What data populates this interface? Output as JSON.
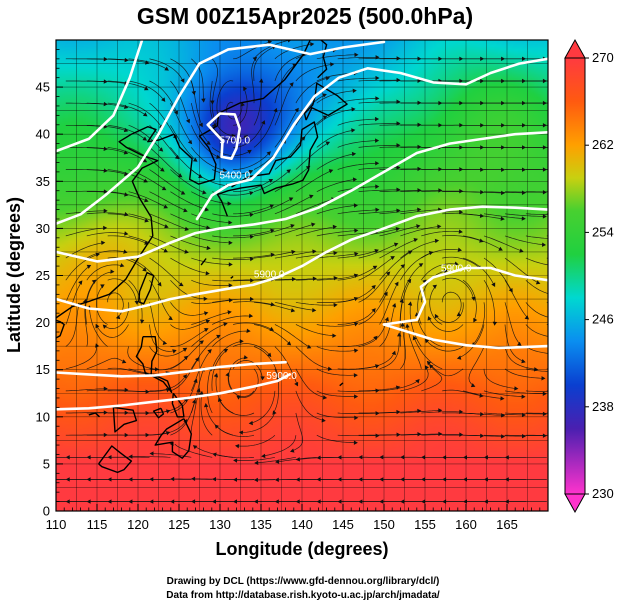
{
  "title": "GSM 00Z15Apr2025 (500.0hPa)",
  "x_axis": {
    "label": "Longitude (degrees)",
    "range": [
      110,
      170
    ],
    "ticks": [
      "110",
      "115",
      "120",
      "125",
      "130",
      "135",
      "140",
      "145",
      "150",
      "155",
      "160",
      "165"
    ]
  },
  "y_axis": {
    "label": "Latitude  (degrees)",
    "range": [
      0,
      50
    ],
    "ticks": [
      "0",
      "5",
      "10",
      "15",
      "20",
      "25",
      "30",
      "35",
      "40",
      "45"
    ]
  },
  "colorbar": {
    "ticks": [
      "270",
      "262",
      "254",
      "246",
      "238",
      "230"
    ],
    "stops": [
      {
        "v": 230,
        "color": "#ff33cc"
      },
      {
        "v": 236,
        "color": "#4a1fb0"
      },
      {
        "v": 240,
        "color": "#0a3fd0"
      },
      {
        "v": 244,
        "color": "#0a8ef0"
      },
      {
        "v": 248,
        "color": "#00d8d0"
      },
      {
        "v": 252,
        "color": "#20d040"
      },
      {
        "v": 256,
        "color": "#48d030"
      },
      {
        "v": 259,
        "color": "#c8d010"
      },
      {
        "v": 262,
        "color": "#ffa000"
      },
      {
        "v": 266,
        "color": "#ff5a10"
      },
      {
        "v": 270,
        "color": "#ff3a40"
      }
    ]
  },
  "contour_labels": [
    {
      "text": "5700.0",
      "lon": 131.8,
      "lat": 39.0
    },
    {
      "text": "5400.0",
      "lon": 131.8,
      "lat": 35.3
    },
    {
      "text": "5900.0",
      "lon": 136.0,
      "lat": 24.8
    },
    {
      "text": "5900.0",
      "lon": 137.5,
      "lat": 14.0
    },
    {
      "text": "5900.0",
      "lon": 158.8,
      "lat": 25.4
    }
  ],
  "credits": [
    "Drawing by DCL (https://www.gfd-dennou.org/library/dcl/)",
    "Data from http://database.rish.kyoto-u.ac.jp/arch/jmadata/"
  ]
}
